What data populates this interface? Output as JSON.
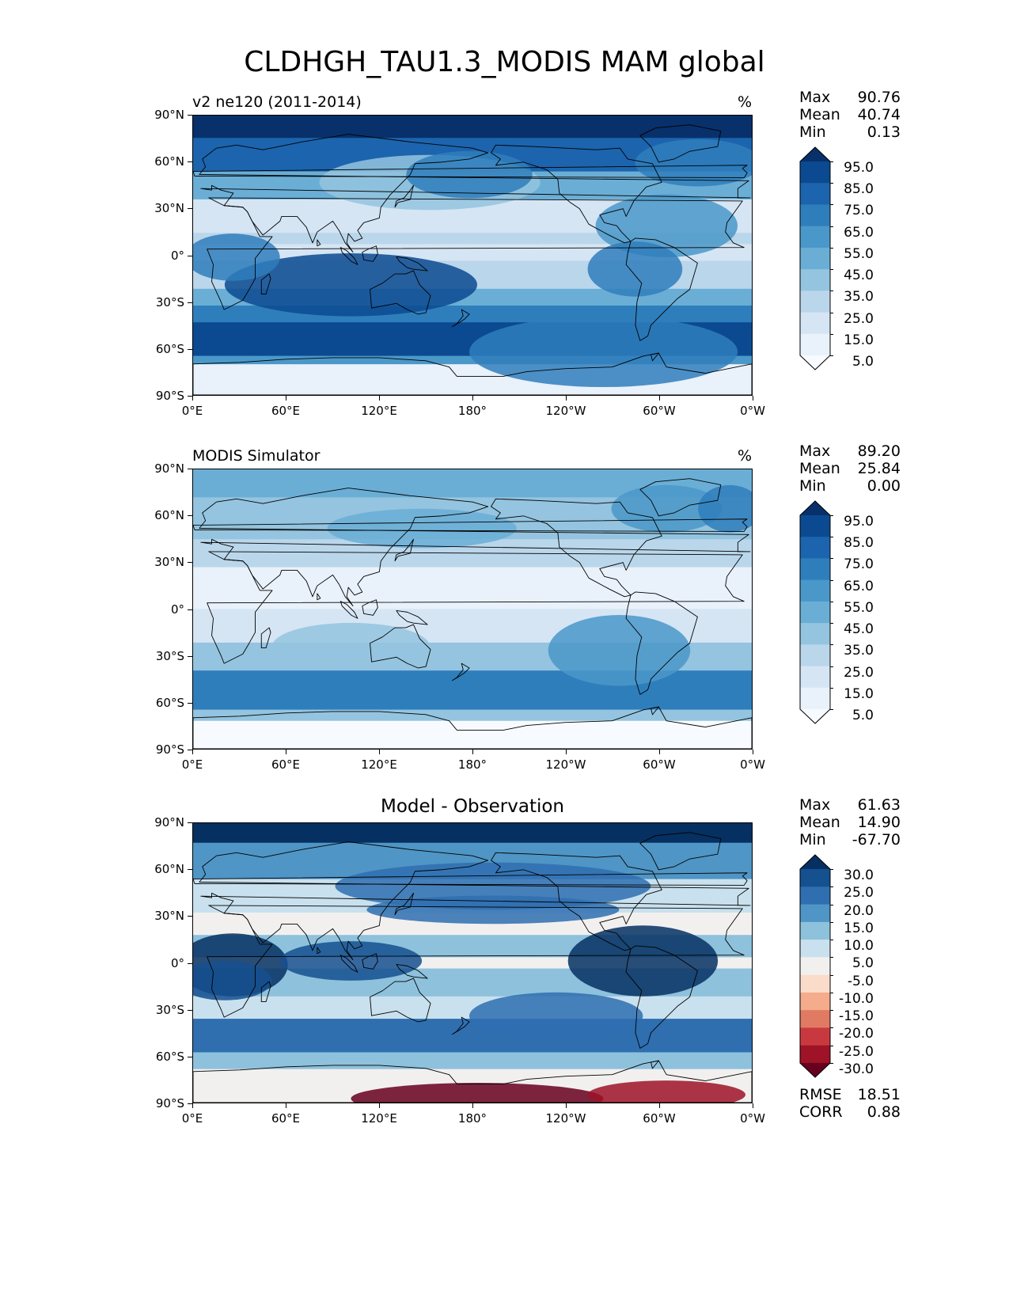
{
  "figure": {
    "title": "CLDHGH_TAU1.3_MODIS MAM global"
  },
  "lat_labels": [
    "90°N",
    "60°N",
    "30°N",
    "0°",
    "30°S",
    "60°S",
    "90°S"
  ],
  "lon_labels": [
    "0°E",
    "60°E",
    "120°E",
    "180°",
    "120°W",
    "60°W",
    "0°W"
  ],
  "panels": [
    {
      "left_title": "v2 ne120 (2011-2014)",
      "center_title": "",
      "units": "%",
      "stats": [
        {
          "label": "Max",
          "value": "90.76"
        },
        {
          "label": "Mean",
          "value": "40.74"
        },
        {
          "label": "Min",
          "value": "0.13"
        }
      ],
      "extra_stats": [],
      "colorbar": {
        "labels": [
          "95.0",
          "85.0",
          "75.0",
          "65.0",
          "55.0",
          "45.0",
          "35.0",
          "25.0",
          "15.0",
          "5.0"
        ],
        "colors": [
          "#08306b",
          "#0b4a91",
          "#1c64ad",
          "#2f7ebc",
          "#4a98c9",
          "#6aaed6",
          "#94c4df",
          "#bad6eb",
          "#d5e5f4",
          "#e9f1fa",
          "#f7fbff"
        ]
      }
    },
    {
      "left_title": "MODIS Simulator",
      "center_title": "",
      "units": "%",
      "stats": [
        {
          "label": "Max",
          "value": "89.20"
        },
        {
          "label": "Mean",
          "value": "25.84"
        },
        {
          "label": "Min",
          "value": "0.00"
        }
      ],
      "extra_stats": [],
      "colorbar": {
        "labels": [
          "95.0",
          "85.0",
          "75.0",
          "65.0",
          "55.0",
          "45.0",
          "35.0",
          "25.0",
          "15.0",
          "5.0"
        ],
        "colors": [
          "#08306b",
          "#0b4a91",
          "#1c64ad",
          "#2f7ebc",
          "#4a98c9",
          "#6aaed6",
          "#94c4df",
          "#bad6eb",
          "#d5e5f4",
          "#e9f1fa",
          "#f7fbff"
        ]
      }
    },
    {
      "left_title": "",
      "center_title": "Model - Observation",
      "units": "",
      "stats": [
        {
          "label": "Max",
          "value": "61.63"
        },
        {
          "label": "Mean",
          "value": "14.90"
        },
        {
          "label": "Min",
          "value": "-67.70"
        }
      ],
      "extra_stats": [
        {
          "label": "RMSE",
          "value": "18.51"
        },
        {
          "label": "CORR",
          "value": "0.88"
        }
      ],
      "colorbar": {
        "labels": [
          "30.0",
          "25.0",
          "20.0",
          "15.0",
          "10.0",
          "5.0",
          "-5.0",
          "-10.0",
          "-15.0",
          "-20.0",
          "-25.0",
          "-30.0"
        ],
        "colors": [
          "#053061",
          "#15508f",
          "#2f6fb0",
          "#4f95c5",
          "#8ec1dc",
          "#c9e1ee",
          "#f2f0ef",
          "#fbdccb",
          "#f4ac8c",
          "#e17a63",
          "#c8393f",
          "#9e1327",
          "#67001f"
        ]
      }
    }
  ]
}
